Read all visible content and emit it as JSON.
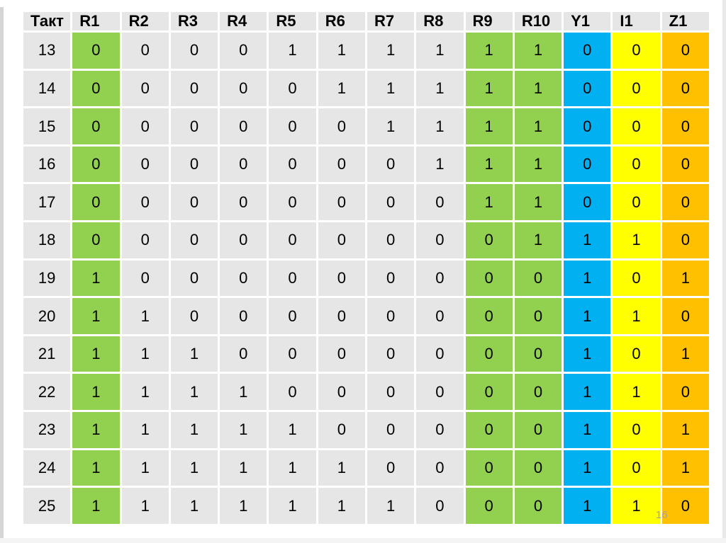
{
  "page": {
    "page_number": "16"
  },
  "colors": {
    "green": "#92D050",
    "blue": "#00B0F0",
    "yellow": "#FFFF00",
    "orange": "#FFC000",
    "cell_gray": "#E7E6E6"
  },
  "table": {
    "columns": [
      "Такт",
      "R1",
      "R2",
      "R3",
      "R4",
      "R5",
      "R6",
      "R7",
      "R8",
      "R9",
      "R10",
      "Y1",
      "I1",
      "Z1"
    ],
    "column_colors": {
      "Такт": "cell_gray",
      "R1": "green",
      "R2": "cell_gray",
      "R3": "cell_gray",
      "R4": "cell_gray",
      "R5": "cell_gray",
      "R6": "cell_gray",
      "R7": "cell_gray",
      "R8": "cell_gray",
      "R9": "green",
      "R10": "green",
      "Y1": "blue",
      "I1": "yellow",
      "Z1": "orange"
    },
    "rows": [
      {
        "takt": "13",
        "values": [
          "0",
          "0",
          "0",
          "0",
          "1",
          "1",
          "1",
          "1",
          "1",
          "1",
          "0",
          "0",
          "0"
        ]
      },
      {
        "takt": "14",
        "values": [
          "0",
          "0",
          "0",
          "0",
          "0",
          "1",
          "1",
          "1",
          "1",
          "1",
          "0",
          "0",
          "0"
        ]
      },
      {
        "takt": "15",
        "values": [
          "0",
          "0",
          "0",
          "0",
          "0",
          "0",
          "1",
          "1",
          "1",
          "1",
          "0",
          "0",
          "0"
        ]
      },
      {
        "takt": "16",
        "values": [
          "0",
          "0",
          "0",
          "0",
          "0",
          "0",
          "0",
          "1",
          "1",
          "1",
          "0",
          "0",
          "0"
        ]
      },
      {
        "takt": "17",
        "values": [
          "0",
          "0",
          "0",
          "0",
          "0",
          "0",
          "0",
          "0",
          "1",
          "1",
          "0",
          "0",
          "0"
        ]
      },
      {
        "takt": "18",
        "values": [
          "0",
          "0",
          "0",
          "0",
          "0",
          "0",
          "0",
          "0",
          "0",
          "1",
          "1",
          "1",
          "0"
        ]
      },
      {
        "takt": "19",
        "values": [
          "1",
          "0",
          "0",
          "0",
          "0",
          "0",
          "0",
          "0",
          "0",
          "0",
          "1",
          "0",
          "1"
        ]
      },
      {
        "takt": "20",
        "values": [
          "1",
          "1",
          "0",
          "0",
          "0",
          "0",
          "0",
          "0",
          "0",
          "0",
          "1",
          "1",
          "0"
        ]
      },
      {
        "takt": "21",
        "values": [
          "1",
          "1",
          "1",
          "0",
          "0",
          "0",
          "0",
          "0",
          "0",
          "0",
          "1",
          "0",
          "1"
        ]
      },
      {
        "takt": "22",
        "values": [
          "1",
          "1",
          "1",
          "1",
          "0",
          "0",
          "0",
          "0",
          "0",
          "0",
          "1",
          "1",
          "0"
        ]
      },
      {
        "takt": "23",
        "values": [
          "1",
          "1",
          "1",
          "1",
          "1",
          "0",
          "0",
          "0",
          "0",
          "0",
          "1",
          "0",
          "1"
        ]
      },
      {
        "takt": "24",
        "values": [
          "1",
          "1",
          "1",
          "1",
          "1",
          "1",
          "0",
          "0",
          "0",
          "0",
          "1",
          "0",
          "1"
        ]
      },
      {
        "takt": "25",
        "values": [
          "1",
          "1",
          "1",
          "1",
          "1",
          "1",
          "1",
          "0",
          "0",
          "0",
          "1",
          "1",
          "0"
        ]
      }
    ]
  }
}
